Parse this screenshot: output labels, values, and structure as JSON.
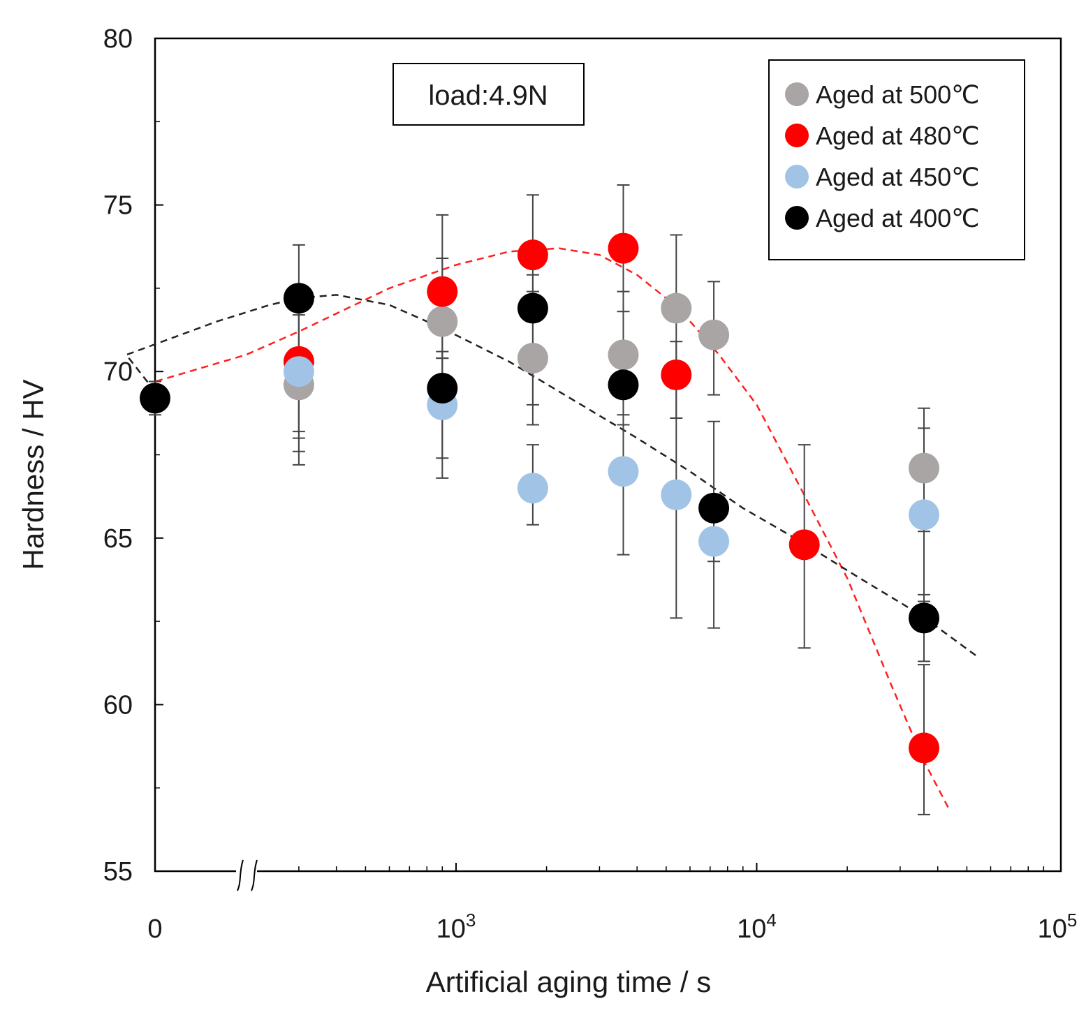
{
  "chart_data": {
    "type": "scatter",
    "title": "",
    "xlabel": "Artificial aging time / s",
    "ylabel": "Hardness / HV",
    "ylim": [
      55,
      80
    ],
    "xscale": "log with axis break (0 shown at left)",
    "xlim": [
      0,
      100000
    ],
    "x_tick_labels": [
      {
        "value": 0,
        "base": "0",
        "exp": ""
      },
      {
        "value": 1000,
        "base": "10",
        "exp": "3"
      },
      {
        "value": 10000,
        "base": "10",
        "exp": "4"
      },
      {
        "value": 100000,
        "base": "10",
        "exp": "5"
      }
    ],
    "y_ticks": [
      55,
      60,
      65,
      70,
      75,
      80
    ],
    "annotation": "load:4.9N",
    "legend_position": "top-right",
    "series": [
      {
        "name": "Aged at 500℃",
        "color": "#a8a5a4",
        "points": [
          {
            "x": 300,
            "y": 69.6,
            "err": [
              67.6,
              71.7
            ]
          },
          {
            "x": 900,
            "y": 71.5,
            "err": [
              69.2,
              73.4
            ]
          },
          {
            "x": 1800,
            "y": 70.4,
            "err": [
              68.4,
              72.4
            ]
          },
          {
            "x": 3600,
            "y": 70.5,
            "err": [
              68.7,
              72.4
            ]
          },
          {
            "x": 5400,
            "y": 71.9,
            "err": [
              69.7,
              74.1
            ]
          },
          {
            "x": 7200,
            "y": 71.1,
            "err": [
              69.3,
              72.7
            ]
          },
          {
            "x": 36000,
            "y": 67.1,
            "err": [
              65.2,
              68.9
            ]
          }
        ]
      },
      {
        "name": "Aged at 480℃",
        "color": "#fe0000",
        "points": [
          {
            "x": 300,
            "y": 70.3,
            "err": [
              68.2,
              72.3
            ]
          },
          {
            "x": 900,
            "y": 72.4,
            "err": [
              70.4,
              74.7
            ]
          },
          {
            "x": 1800,
            "y": 73.5,
            "err": [
              71.6,
              75.3
            ]
          },
          {
            "x": 3600,
            "y": 73.7,
            "err": [
              71.8,
              75.6
            ]
          },
          {
            "x": 5400,
            "y": 69.9,
            "err": [
              68.6,
              70.9
            ]
          },
          {
            "x": 14400,
            "y": 64.8,
            "err": [
              61.7,
              67.8
            ]
          },
          {
            "x": 36000,
            "y": 58.7,
            "err": [
              56.7,
              61.2
            ]
          }
        ]
      },
      {
        "name": "Aged at 450℃",
        "color": "#a1c4e6",
        "points": [
          {
            "x": 300,
            "y": 70.0,
            "err": [
              68.0,
              72.0
            ]
          },
          {
            "x": 900,
            "y": 69.0,
            "err": [
              67.4,
              70.4
            ]
          },
          {
            "x": 1800,
            "y": 66.5,
            "err": [
              65.4,
              67.8
            ]
          },
          {
            "x": 3600,
            "y": 67.0,
            "err": [
              64.5,
              69.5
            ]
          },
          {
            "x": 5400,
            "y": 66.3,
            "err": [
              62.6,
              70.1
            ]
          },
          {
            "x": 7200,
            "y": 64.9,
            "err": [
              64.3,
              65.6
            ]
          },
          {
            "x": 36000,
            "y": 65.7,
            "err": [
              63.1,
              68.3
            ]
          }
        ]
      },
      {
        "name": "Aged at 400℃",
        "color": "#000000",
        "points": [
          {
            "x": 0,
            "y": 69.2,
            "err": [
              68.7,
              69.7
            ]
          },
          {
            "x": 300,
            "y": 72.2,
            "err": [
              67.2,
              73.8
            ]
          },
          {
            "x": 900,
            "y": 69.5,
            "err": [
              66.8,
              70.6
            ]
          },
          {
            "x": 1800,
            "y": 71.9,
            "err": [
              69.0,
              72.9
            ]
          },
          {
            "x": 3600,
            "y": 69.6,
            "err": [
              68.4,
              70.9
            ]
          },
          {
            "x": 7200,
            "y": 65.9,
            "err": [
              62.3,
              68.5
            ]
          },
          {
            "x": 36000,
            "y": 62.6,
            "err": [
              61.3,
              63.3
            ]
          }
        ]
      }
    ],
    "trend_lines": [
      {
        "name": "480℃ trend",
        "color": "#ff2020",
        "dash": "dashed",
        "points": [
          [
            0,
            69.0
          ],
          [
            100,
            69.7
          ],
          [
            200,
            70.5
          ],
          [
            300,
            71.2
          ],
          [
            600,
            72.5
          ],
          [
            1000,
            73.2
          ],
          [
            1500,
            73.6
          ],
          [
            2200,
            73.7
          ],
          [
            3000,
            73.5
          ],
          [
            4000,
            72.9
          ],
          [
            5500,
            71.9
          ],
          [
            7500,
            70.5
          ],
          [
            10000,
            69.0
          ],
          [
            14000,
            66.5
          ],
          [
            20000,
            63.8
          ],
          [
            28000,
            60.6
          ],
          [
            36000,
            58.3
          ],
          [
            44000,
            56.8
          ]
        ]
      },
      {
        "name": "400℃ trend",
        "color": "#222222",
        "dash": "dashed",
        "points": [
          [
            0,
            69.4
          ],
          [
            80,
            70.5
          ],
          [
            160,
            71.5
          ],
          [
            240,
            72.0
          ],
          [
            300,
            72.2
          ],
          [
            400,
            72.3
          ],
          [
            600,
            72.0
          ],
          [
            900,
            71.3
          ],
          [
            1500,
            70.3
          ],
          [
            2500,
            69.1
          ],
          [
            4000,
            68.0
          ],
          [
            6000,
            67.0
          ],
          [
            9000,
            65.9
          ],
          [
            14000,
            64.9
          ],
          [
            22000,
            63.8
          ],
          [
            35000,
            62.7
          ],
          [
            55000,
            61.4
          ]
        ]
      }
    ]
  }
}
